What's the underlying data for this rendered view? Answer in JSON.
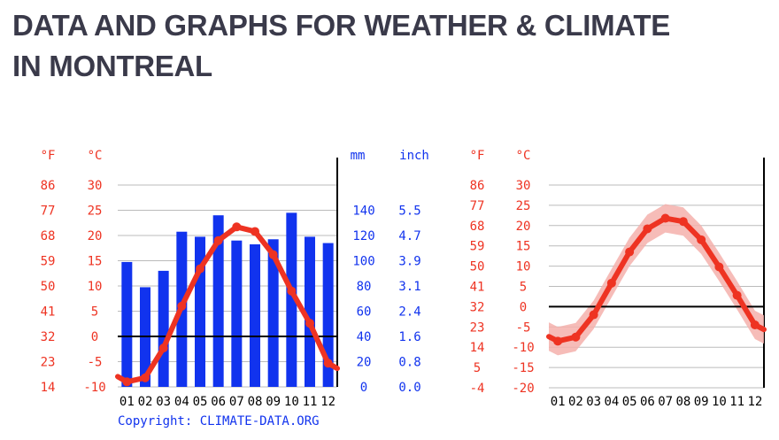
{
  "page": {
    "title_line1": "DATA AND GRAPHS FOR WEATHER & CLIMATE",
    "title_line2": "IN MONTREAL"
  },
  "colors": {
    "temperature": "#ee3322",
    "temperature_band": "#f5b0ac",
    "precipitation": "#1133ee",
    "axis_text_red": "#ee3322",
    "axis_text_blue": "#1133ee",
    "grid": "#bbbbbb",
    "zero_line": "#000000"
  },
  "chart_data": [
    {
      "type": "bar",
      "secondary_type": "line",
      "units": {
        "f": "°F",
        "c": "°C",
        "mm": "mm",
        "inch": "inch"
      },
      "categories": [
        "01",
        "02",
        "03",
        "04",
        "05",
        "06",
        "07",
        "08",
        "09",
        "10",
        "11",
        "12"
      ],
      "temp_ticks_c": [
        "30",
        "25",
        "20",
        "15",
        "10",
        "5",
        "0",
        "-5",
        "-10"
      ],
      "temp_ticks_f": [
        "86",
        "77",
        "68",
        "59",
        "50",
        "41",
        "32",
        "23",
        "14"
      ],
      "precip_ticks_mm": [
        "140",
        "120",
        "100",
        "80",
        "60",
        "40",
        "20",
        "0"
      ],
      "precip_ticks_inch": [
        "5.5",
        "4.7",
        "3.9",
        "3.1",
        "2.4",
        "1.6",
        "0.8",
        "0.0"
      ],
      "ylim_c": [
        -10,
        30
      ],
      "ylim_mm": [
        0,
        160
      ],
      "grid": true,
      "series": [
        {
          "values": [
            99,
            79,
            92,
            123,
            119,
            136,
            116,
            113,
            117,
            138,
            119,
            114
          ]
        },
        {
          "values": [
            -9.0,
            -8.2,
            -2.3,
            6.0,
            13.4,
            19.0,
            21.7,
            20.8,
            16.2,
            9.0,
            2.6,
            -5.3
          ]
        }
      ],
      "copyright": "Copyright: CLIMATE-DATA.ORG"
    },
    {
      "type": "line",
      "units": {
        "f": "°F",
        "c": "°C"
      },
      "categories": [
        "01",
        "02",
        "03",
        "04",
        "05",
        "06",
        "07",
        "08",
        "09",
        "10",
        "11",
        "12"
      ],
      "temp_ticks_c": [
        "30",
        "25",
        "20",
        "15",
        "10",
        "5",
        "0",
        "-5",
        "-10",
        "-15",
        "-20"
      ],
      "temp_ticks_f": [
        "86",
        "77",
        "68",
        "59",
        "50",
        "41",
        "32",
        "23",
        "14",
        "5",
        "-4"
      ],
      "ylim_c": [
        -20,
        30
      ],
      "grid": true,
      "series": [
        {
          "values": [
            -8.5,
            -7.5,
            -2.0,
            5.8,
            13.5,
            19.2,
            21.8,
            21.0,
            16.5,
            9.8,
            2.8,
            -4.5
          ],
          "band": 3.5
        }
      ]
    }
  ]
}
